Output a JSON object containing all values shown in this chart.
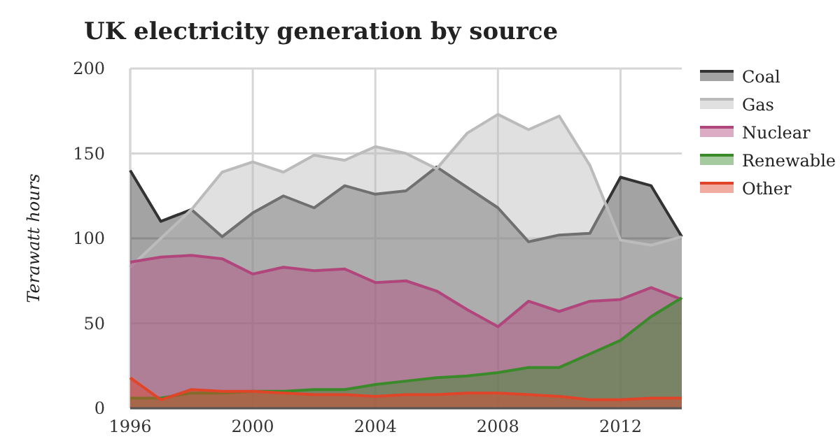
{
  "chart_data": {
    "type": "area",
    "title": "UK electricity generation by source",
    "ylabel": "Terawatt hours",
    "x": [
      1996,
      1997,
      1998,
      1999,
      2000,
      2001,
      2002,
      2003,
      2004,
      2005,
      2006,
      2007,
      2008,
      2009,
      2010,
      2011,
      2012,
      2013,
      2014
    ],
    "xlim": [
      1996,
      2014
    ],
    "xticks": [
      1996,
      2000,
      2004,
      2008,
      2012
    ],
    "ylim": [
      0,
      200
    ],
    "yticks": [
      0,
      50,
      100,
      150,
      200
    ],
    "grid": true,
    "legend": "right",
    "series": [
      {
        "name": "Coal",
        "color": "#333333",
        "values": [
          140,
          110,
          117,
          101,
          115,
          125,
          118,
          131,
          126,
          128,
          142,
          130,
          118,
          98,
          102,
          103,
          136,
          131,
          101
        ]
      },
      {
        "name": "Gas",
        "color": "#bbbbbb",
        "values": [
          83,
          100,
          117,
          139,
          145,
          139,
          149,
          146,
          154,
          150,
          141,
          162,
          173,
          164,
          172,
          143,
          99,
          96,
          101
        ]
      },
      {
        "name": "Nuclear",
        "color": "#b0467c",
        "values": [
          86,
          89,
          90,
          88,
          79,
          83,
          81,
          82,
          74,
          75,
          69,
          58,
          48,
          63,
          57,
          63,
          64,
          71,
          64
        ]
      },
      {
        "name": "Renewable",
        "color": "#3a8a2a",
        "values": [
          6,
          6,
          9,
          9,
          10,
          10,
          11,
          11,
          14,
          16,
          18,
          19,
          21,
          24,
          24,
          32,
          40,
          54,
          65
        ]
      },
      {
        "name": "Other",
        "color": "#e0452a",
        "values": [
          18,
          5,
          11,
          10,
          10,
          9,
          8,
          8,
          7,
          8,
          8,
          9,
          9,
          8,
          7,
          5,
          5,
          6,
          6
        ]
      }
    ]
  }
}
